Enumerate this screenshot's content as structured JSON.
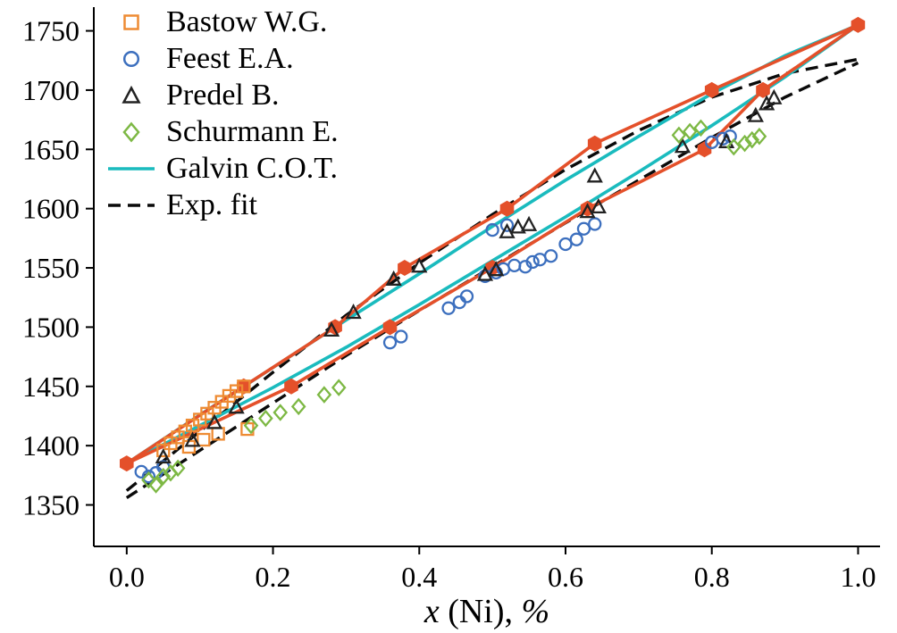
{
  "colors": {
    "axis": "#000000",
    "bastow": "#EE8B33",
    "feest": "#3C6FBE",
    "predel": "#222222",
    "schurmann": "#7DB844",
    "galvin": "#1ABBBE",
    "calc": "#E4502A",
    "expfit": "#0A0A0A"
  },
  "legend": {
    "items": [
      {
        "label": "Bastow W.G.",
        "marker": "square",
        "color": "bastow"
      },
      {
        "label": "Feest E.A.",
        "marker": "circle",
        "color": "feest"
      },
      {
        "label": "Predel B.",
        "marker": "triangle",
        "color": "predel"
      },
      {
        "label": "Schurmann E.",
        "marker": "diamond",
        "color": "schurmann"
      },
      {
        "label": "Galvin C.O.T.",
        "marker": "line",
        "color": "galvin"
      },
      {
        "label": "Exp. fit",
        "marker": "dashed-line",
        "color": "expfit"
      }
    ]
  },
  "chart_data": {
    "type": "scatter",
    "title": "",
    "xlabel": "x (Ni), %",
    "xlabel_parts": [
      {
        "text": "x",
        "italic": true
      },
      {
        "text": " (Ni), ",
        "italic": false
      },
      {
        "text": "%",
        "italic": true
      }
    ],
    "ylabel": "",
    "xlim": [
      -0.045,
      1.03
    ],
    "ylim": [
      1315,
      1770
    ],
    "grid": false,
    "legend_position": "upper left",
    "xticks": [
      {
        "label": "0.0",
        "value": 0.0
      },
      {
        "label": "0.2",
        "value": 0.2
      },
      {
        "label": "0.4",
        "value": 0.4
      },
      {
        "label": "0.6",
        "value": 0.6
      },
      {
        "label": "0.8",
        "value": 0.8
      },
      {
        "label": "1.0",
        "value": 1.0
      }
    ],
    "yticks": [
      {
        "label": "1350",
        "value": 1350
      },
      {
        "label": "1400",
        "value": 1400
      },
      {
        "label": "1450",
        "value": 1450
      },
      {
        "label": "1500",
        "value": 1500
      },
      {
        "label": "1550",
        "value": 1550
      },
      {
        "label": "1600",
        "value": 1600
      },
      {
        "label": "1650",
        "value": 1650
      },
      {
        "label": "1700",
        "value": 1700
      },
      {
        "label": "1750",
        "value": 1750
      }
    ],
    "scatter_series": [
      {
        "id": "bastow",
        "name": "Bastow W.G.",
        "marker": "square",
        "color": "bastow",
        "points": [
          [
            0.05,
            1396
          ],
          [
            0.06,
            1402
          ],
          [
            0.07,
            1407
          ],
          [
            0.08,
            1412
          ],
          [
            0.09,
            1417
          ],
          [
            0.1,
            1422
          ],
          [
            0.11,
            1427
          ],
          [
            0.12,
            1432
          ],
          [
            0.13,
            1437
          ],
          [
            0.14,
            1442
          ],
          [
            0.15,
            1446
          ],
          [
            0.16,
            1450
          ],
          [
            0.085,
            1399
          ],
          [
            0.105,
            1405
          ],
          [
            0.125,
            1410
          ],
          [
            0.165,
            1414
          ]
        ]
      },
      {
        "id": "feest",
        "name": "Feest E.A.",
        "marker": "circle",
        "color": "feest",
        "points": [
          [
            0.02,
            1378
          ],
          [
            0.03,
            1374
          ],
          [
            0.04,
            1377
          ],
          [
            0.05,
            1382
          ],
          [
            0.36,
            1487
          ],
          [
            0.375,
            1492
          ],
          [
            0.44,
            1516
          ],
          [
            0.455,
            1521
          ],
          [
            0.465,
            1526
          ],
          [
            0.49,
            1543
          ],
          [
            0.505,
            1546
          ],
          [
            0.515,
            1549
          ],
          [
            0.53,
            1552
          ],
          [
            0.545,
            1551
          ],
          [
            0.555,
            1555
          ],
          [
            0.565,
            1557
          ],
          [
            0.58,
            1560
          ],
          [
            0.5,
            1582
          ],
          [
            0.52,
            1586
          ],
          [
            0.6,
            1570
          ],
          [
            0.615,
            1574
          ],
          [
            0.625,
            1583
          ],
          [
            0.64,
            1587
          ],
          [
            0.8,
            1656
          ],
          [
            0.815,
            1659
          ],
          [
            0.825,
            1661
          ]
        ]
      },
      {
        "id": "predel",
        "name": "Predel B.",
        "marker": "triangle",
        "color": "predel",
        "points": [
          [
            0.05,
            1390
          ],
          [
            0.09,
            1404
          ],
          [
            0.12,
            1419
          ],
          [
            0.15,
            1432
          ],
          [
            0.28,
            1497
          ],
          [
            0.31,
            1512
          ],
          [
            0.365,
            1540
          ],
          [
            0.4,
            1551
          ],
          [
            0.49,
            1544
          ],
          [
            0.505,
            1548
          ],
          [
            0.52,
            1580
          ],
          [
            0.535,
            1584
          ],
          [
            0.55,
            1586
          ],
          [
            0.63,
            1597
          ],
          [
            0.645,
            1601
          ],
          [
            0.64,
            1627
          ],
          [
            0.76,
            1652
          ],
          [
            0.82,
            1656
          ],
          [
            0.86,
            1678
          ],
          [
            0.875,
            1688
          ],
          [
            0.885,
            1693
          ]
        ]
      },
      {
        "id": "schurmann",
        "name": "Schurmann E.",
        "marker": "diamond",
        "color": "schurmann",
        "points": [
          [
            0.03,
            1371
          ],
          [
            0.04,
            1367
          ],
          [
            0.05,
            1374
          ],
          [
            0.06,
            1377
          ],
          [
            0.07,
            1381
          ],
          [
            0.17,
            1417
          ],
          [
            0.19,
            1423
          ],
          [
            0.21,
            1428
          ],
          [
            0.235,
            1433
          ],
          [
            0.27,
            1443
          ],
          [
            0.29,
            1449
          ],
          [
            0.755,
            1662
          ],
          [
            0.77,
            1665
          ],
          [
            0.785,
            1668
          ],
          [
            0.83,
            1652
          ],
          [
            0.845,
            1655
          ],
          [
            0.855,
            1658
          ],
          [
            0.865,
            1661
          ]
        ]
      }
    ],
    "line_series": [
      {
        "id": "expfit",
        "name": "Exp. fit",
        "color": "expfit",
        "style": "dashed",
        "width": 3.4,
        "branches": [
          [
            [
              0,
              1362
            ],
            [
              0.1,
              1412
            ],
            [
              0.2,
              1462
            ],
            [
              0.3,
              1510
            ],
            [
              0.4,
              1554
            ],
            [
              0.5,
              1595
            ],
            [
              0.6,
              1633
            ],
            [
              0.7,
              1666
            ],
            [
              0.8,
              1694
            ],
            [
              0.9,
              1714
            ],
            [
              1,
              1726
            ]
          ],
          [
            [
              0,
              1356
            ],
            [
              0.1,
              1396
            ],
            [
              0.2,
              1436
            ],
            [
              0.3,
              1476
            ],
            [
              0.4,
              1514
            ],
            [
              0.5,
              1551
            ],
            [
              0.6,
              1588
            ],
            [
              0.7,
              1624
            ],
            [
              0.8,
              1660
            ],
            [
              0.9,
              1694
            ],
            [
              1,
              1723
            ]
          ]
        ]
      },
      {
        "id": "galvin",
        "name": "Galvin C.O.T.",
        "color": "galvin",
        "style": "solid",
        "width": 3.6,
        "branches": [
          [
            [
              0,
              1385
            ],
            [
              0.1,
              1426
            ],
            [
              0.2,
              1466
            ],
            [
              0.3,
              1506
            ],
            [
              0.4,
              1545
            ],
            [
              0.5,
              1585
            ],
            [
              0.6,
              1624
            ],
            [
              0.7,
              1661
            ],
            [
              0.8,
              1697
            ],
            [
              0.9,
              1729
            ],
            [
              1,
              1755
            ]
          ],
          [
            [
              0,
              1385
            ],
            [
              0.1,
              1417
            ],
            [
              0.2,
              1449
            ],
            [
              0.3,
              1483
            ],
            [
              0.4,
              1519
            ],
            [
              0.5,
              1556
            ],
            [
              0.6,
              1593
            ],
            [
              0.7,
              1631
            ],
            [
              0.8,
              1670
            ],
            [
              0.9,
              1711
            ],
            [
              1,
              1755
            ]
          ]
        ]
      },
      {
        "id": "red-hexagon-line",
        "name": "",
        "color": "calc",
        "style": "solid",
        "width": 3.6,
        "marker": "hexagon",
        "branches": [
          [
            [
              0,
              1385
            ],
            [
              0.16,
              1450
            ],
            [
              0.285,
              1500
            ],
            [
              0.38,
              1550
            ],
            [
              0.52,
              1600
            ],
            [
              0.64,
              1655
            ],
            [
              0.8,
              1700
            ],
            [
              1,
              1755
            ]
          ],
          [
            [
              0,
              1385
            ],
            [
              0.225,
              1450
            ],
            [
              0.36,
              1500
            ],
            [
              0.5,
              1550
            ],
            [
              0.63,
              1600
            ],
            [
              0.79,
              1650
            ],
            [
              0.87,
              1700
            ],
            [
              1,
              1755
            ]
          ]
        ]
      }
    ]
  }
}
